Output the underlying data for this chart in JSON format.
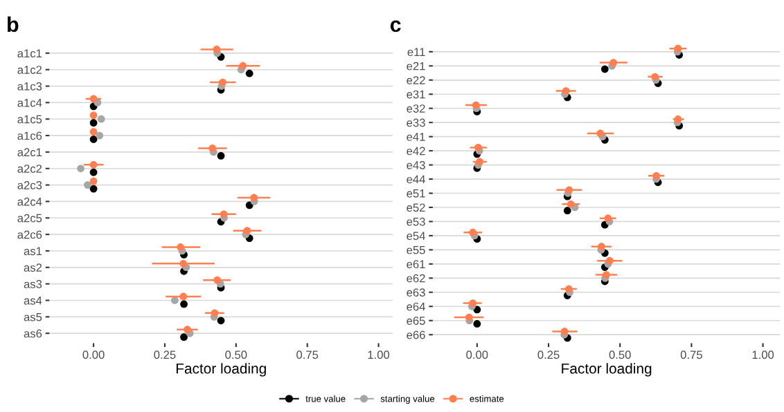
{
  "chart_data": [
    {
      "type": "scatter",
      "title": "b",
      "xlabel": "Factor loading",
      "orientation": "horizontal",
      "categories": [
        "a1c1",
        "a1c2",
        "a1c3",
        "a1c4",
        "a1c5",
        "a1c6",
        "a2c1",
        "a2c2",
        "a2c3",
        "a2c4",
        "a2c5",
        "a2c6",
        "as1",
        "as2",
        "as3",
        "as4",
        "as5",
        "as6"
      ],
      "xlim": [
        -0.155,
        1.05
      ],
      "xticks": [
        {
          "value": 0,
          "label": "0.00"
        },
        {
          "value": 0.25,
          "label": "0.25"
        },
        {
          "value": 0.5,
          "label": "0.50"
        },
        {
          "value": 0.75,
          "label": "0.75"
        },
        {
          "value": 1,
          "label": "1.00"
        }
      ],
      "grid": "y",
      "legend": "bottom",
      "marker": "circle",
      "series": [
        {
          "name": "true value",
          "color": "#000000",
          "values": [
            0.447,
            0.547,
            0.447,
            0,
            0,
            0,
            0.447,
            0,
            0,
            0.547,
            0.447,
            0.547,
            0.317,
            0.317,
            0.447,
            0.317,
            0.447,
            0.317
          ]
        },
        {
          "name": "starting value",
          "color": "#a6a6a6",
          "values": [
            0.434,
            0.518,
            0.449,
            0.014,
            0.027,
            0.021,
            0.421,
            -0.045,
            -0.021,
            0.564,
            0.458,
            0.534,
            0.311,
            0.325,
            0.445,
            0.285,
            0.423,
            0.338
          ]
        },
        {
          "name": "estimate",
          "color": "#ff7f50",
          "values": [
            0.432,
            0.524,
            0.453,
            0,
            0,
            0,
            0.417,
            0,
            0,
            0.563,
            0.457,
            0.539,
            0.305,
            0.315,
            0.434,
            0.315,
            0.425,
            0.329
          ],
          "errors": [
            [
              0.376,
              0.49
            ],
            [
              0.465,
              0.583
            ],
            [
              0.408,
              0.499
            ],
            [
              -0.028,
              0.027
            ],
            null,
            null,
            [
              0.367,
              0.468
            ],
            [
              -0.035,
              0.035
            ],
            null,
            [
              0.505,
              0.62
            ],
            [
              0.414,
              0.5
            ],
            [
              0.49,
              0.589
            ],
            [
              0.239,
              0.374
            ],
            [
              0.205,
              0.425
            ],
            [
              0.384,
              0.481
            ],
            [
              0.253,
              0.377
            ],
            [
              0.391,
              0.458
            ],
            [
              0.292,
              0.366
            ]
          ]
        }
      ]
    },
    {
      "type": "scatter",
      "title": "c",
      "xlabel": "Factor loading",
      "orientation": "horizontal",
      "categories": [
        "e11",
        "e21",
        "e22",
        "e31",
        "e32",
        "e33",
        "e41",
        "e42",
        "e43",
        "e44",
        "e51",
        "e52",
        "e53",
        "e54",
        "e55",
        "e61",
        "e62",
        "e63",
        "e64",
        "e65",
        "e66"
      ],
      "xlim": [
        -0.155,
        1.06
      ],
      "xticks": [
        {
          "value": 0,
          "label": "0.00"
        },
        {
          "value": 0.25,
          "label": "0.25"
        },
        {
          "value": 0.5,
          "label": "0.50"
        },
        {
          "value": 0.75,
          "label": "0.75"
        },
        {
          "value": 1,
          "label": "1.00"
        }
      ],
      "grid": "y",
      "legend": "bottom",
      "marker": "circle",
      "series": [
        {
          "name": "true value",
          "color": "#000000",
          "values": [
            0.707,
            0.447,
            0.633,
            0.316,
            0,
            0.707,
            0.447,
            0,
            0,
            0.633,
            0.316,
            0.316,
            0.447,
            0,
            0.447,
            0.447,
            0.447,
            0.316,
            0,
            0,
            0.316
          ]
        },
        {
          "name": "starting value",
          "color": "#a6a6a6",
          "values": [
            0.701,
            0.472,
            0.626,
            0.307,
            -0.002,
            0.701,
            0.439,
            0.008,
            0.004,
            0.627,
            0.318,
            0.342,
            0.463,
            -0.009,
            0.434,
            0.458,
            0.448,
            0.324,
            -0.018,
            -0.027,
            0.305
          ]
        },
        {
          "name": "estimate",
          "color": "#ff7f50",
          "values": [
            0.703,
            0.477,
            0.622,
            0.311,
            -0.004,
            0.703,
            0.431,
            0.004,
            0.009,
            0.627,
            0.322,
            0.328,
            0.458,
            -0.015,
            0.435,
            0.464,
            0.452,
            0.321,
            -0.015,
            -0.028,
            0.306
          ],
          "errors": [
            [
              0.673,
              0.733
            ],
            [
              0.429,
              0.526
            ],
            [
              0.597,
              0.649
            ],
            [
              0.276,
              0.345
            ],
            [
              -0.041,
              0.034
            ],
            [
              0.685,
              0.724
            ],
            [
              0.385,
              0.478
            ],
            [
              -0.025,
              0.034
            ],
            [
              -0.015,
              0.034
            ],
            [
              0.599,
              0.655
            ],
            [
              0.278,
              0.367
            ],
            [
              0.297,
              0.359
            ],
            [
              0.429,
              0.486
            ],
            [
              -0.047,
              0.017
            ],
            [
              0.399,
              0.47
            ],
            [
              0.42,
              0.508
            ],
            [
              0.415,
              0.49
            ],
            [
              0.293,
              0.349
            ],
            [
              -0.049,
              0.016
            ],
            [
              -0.08,
              0.023
            ],
            [
              0.263,
              0.351
            ]
          ]
        }
      ]
    }
  ]
}
